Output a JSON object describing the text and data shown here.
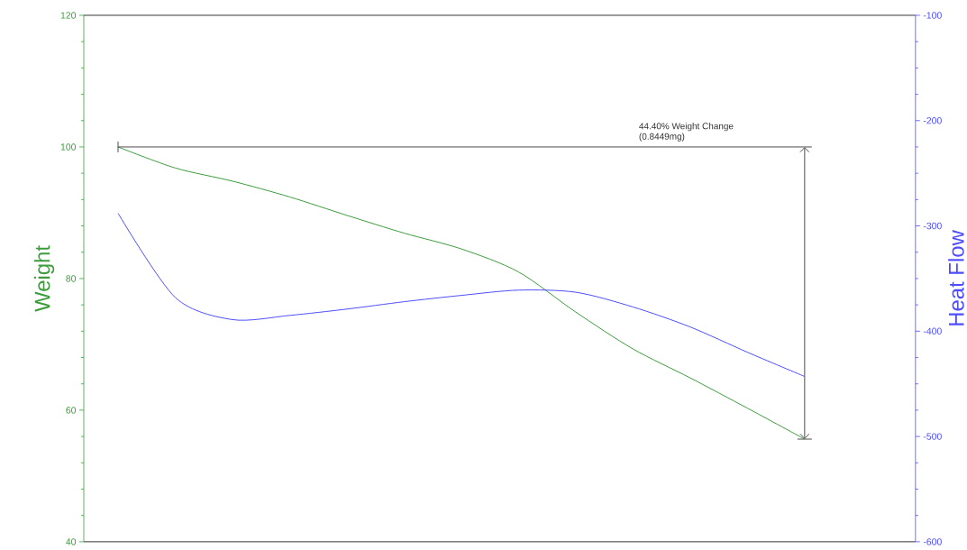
{
  "chart_data": {
    "type": "line",
    "categories": [
      null,
      null,
      null,
      null,
      null,
      null,
      null,
      null,
      null,
      null,
      null,
      null,
      null
    ],
    "series": [
      {
        "name": null,
        "color": "#3c9c3c",
        "axis": "y",
        "values": [
          100,
          96.8,
          94.8,
          92.4,
          89.6,
          86.9,
          84.5,
          81.0,
          74.9,
          69.3,
          64.9,
          60.3,
          55.6
        ]
      },
      {
        "name": null,
        "color": "#4d4dff",
        "axis": "y2",
        "values": [
          -288,
          -368,
          -389,
          -385,
          -379,
          -372,
          -366,
          -361,
          -363,
          -377,
          -396,
          -420,
          -443
        ]
      }
    ],
    "ylabel": "Weight",
    "y2label": "Heat Flow",
    "ylim": [
      40,
      120
    ],
    "yticks": [
      40,
      60,
      80,
      100,
      120
    ],
    "y2lim": [
      -600,
      -100
    ],
    "y2ticks": [
      -600,
      -500,
      -400,
      -300,
      -200,
      -100
    ],
    "annotations": [
      "44.40% Weight Change",
      "(0.8449mg)"
    ],
    "tick_labels": "y",
    "marker": "none",
    "line_style": "solid"
  }
}
